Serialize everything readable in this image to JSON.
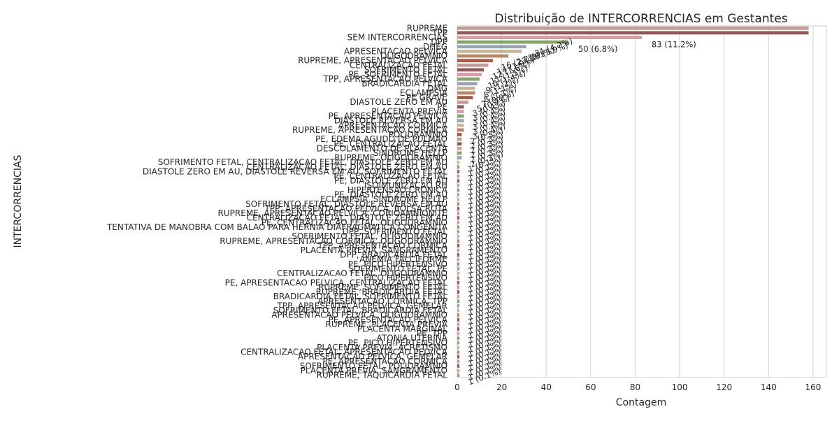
{
  "chart_data": {
    "type": "bar",
    "orientation": "horizontal",
    "title": "Distribuição de INTERCORRENCIAS em Gestantes",
    "xlabel": "Contagem",
    "ylabel": "INTERCORRENCIAS",
    "xlim": [
      0,
      166
    ],
    "xticks": [
      0,
      20,
      40,
      60,
      80,
      100,
      120,
      140,
      160
    ],
    "grid": "vertical",
    "legend": "none",
    "palette": [
      "#c49a9a",
      "#8c5a5a",
      "#d99aa4",
      "#85a36a",
      "#9aa3b0",
      "#c7b79a",
      "#b5886a",
      "#a85a4a"
    ],
    "bars": [
      {
        "label": "RUPREME",
        "value": 158,
        "text": ""
      },
      {
        "label": "TPP",
        "value": 158,
        "text": ""
      },
      {
        "label": "SEM INTERCORRENCIAS",
        "value": 83,
        "text": "83 (11.2%)"
      },
      {
        "label": "DPP",
        "value": 50,
        "text": "50 (6.8%)"
      },
      {
        "label": "DHEG",
        "value": 31,
        "text": "31 (4.2%)"
      },
      {
        "label": "APRESENTACAO PELVICA",
        "value": 29,
        "text": "29 (3.9%)"
      },
      {
        "label": "OLIGODRAMNIO",
        "value": 23,
        "text": "23 (3.1%)"
      },
      {
        "label": "RUPREME, APRESENTACAO PELVICA",
        "value": 16,
        "text": "16 (2.2%)"
      },
      {
        "label": "CENTRALIZACAO FETAL",
        "value": 14,
        "text": "14 (1.9%)"
      },
      {
        "label": "SOFRIMENTO FETAL",
        "value": 12,
        "text": "12 (1.6%)"
      },
      {
        "label": "PE, SOFRIMENTO FETAL",
        "value": 11,
        "text": "11 (1.5%)"
      },
      {
        "label": "TPP, APRESENTACAO PELVICA",
        "value": 10,
        "text": "10 (1.4%)"
      },
      {
        "label": "BRADICARDIA FETAL",
        "value": 9,
        "text": "9 (1.2%)"
      },
      {
        "label": "DMG",
        "value": 8,
        "text": "8 (1.1%)"
      },
      {
        "label": "ECLAMPSIA",
        "value": 8,
        "text": "8 (1.1%)"
      },
      {
        "label": "PE GRAVE",
        "value": 7,
        "text": "7 (0.9%)"
      },
      {
        "label": "DIASTOLE ZERO EM AU",
        "value": 5,
        "text": "5 (0.7%)"
      },
      {
        "label": "PE",
        "value": 3,
        "text": "3 (0.4%)"
      },
      {
        "label": "PLACENTA PREVIA",
        "value": 3,
        "text": "3 (0.4%)"
      },
      {
        "label": "PE, APRESENTACAO PELVICA",
        "value": 3,
        "text": "3 (0.4%)"
      },
      {
        "label": "DIASTOLE REVERSA EM AU",
        "value": 3,
        "text": "3 (0.4%)"
      },
      {
        "label": "APRESENTACAO CORMICA",
        "value": 3,
        "text": "3 (0.4%)"
      },
      {
        "label": "RUPREME, APRESENTACAO CORMICA",
        "value": 3,
        "text": "3 (0.4%)"
      },
      {
        "label": "POLIDRAMNIO",
        "value": 2,
        "text": "2 (0.3%)"
      },
      {
        "label": "PE, EDEMA AGUDO DE PULMAO",
        "value": 2,
        "text": "2 (0.3%)"
      },
      {
        "label": "PE, CENTRALIZACAO FETAL",
        "value": 2,
        "text": "2 (0.3%)"
      },
      {
        "label": "DESCOLAMENTO DE PLACENTA",
        "value": 2,
        "text": "2 (0.3%)"
      },
      {
        "label": "SINDROME HELLP",
        "value": 2,
        "text": "2 (0.3%)"
      },
      {
        "label": "RUPREME, OLIGODRAMNIO",
        "value": 2,
        "text": "2 (0.3%)"
      },
      {
        "label": "SOFRIMENTO FETAL, CENTRALIZACAO FETAL, DIASTOLE ZERO EM AU",
        "value": 1,
        "text": "1 (0.1%)"
      },
      {
        "label": "CENTRALIZACAO FETAL, DIASTOLE ZERO EM AU",
        "value": 1,
        "text": "1 (0.1%)"
      },
      {
        "label": "DIASTOLE ZERO EM AU, DIASTOLE REVERSA EM AU, SOFRIMENTO FETAL",
        "value": 1,
        "text": "1 (0.1%)"
      },
      {
        "label": "PE, CENTRALIZACAO FETAL",
        "value": 1,
        "text": "1 (0.1%)"
      },
      {
        "label": "PE, DIASTOLE ZERO EM AU",
        "value": 1,
        "text": "1 (0.1%)"
      },
      {
        "label": "ISOIMUNIZACAO RH",
        "value": 1,
        "text": "1 (0.1%)"
      },
      {
        "label": "HIPERTENSAO CRONICA",
        "value": 1,
        "text": "1 (0.1%)"
      },
      {
        "label": "PE, DIASTOLE ZERO EM AU",
        "value": 1,
        "text": "1 (0.1%)"
      },
      {
        "label": "ECLAMPSIA, SINDROME HELLP",
        "value": 1,
        "text": "1 (0.1%)"
      },
      {
        "label": "SOFRIMENTO FETAL, DIASTOLE REVERSA EM AU",
        "value": 1,
        "text": "1 (0.1%)"
      },
      {
        "label": "TPP, APRESENTACAO PELVICA, BOLSA ROTA",
        "value": 1,
        "text": "1 (0.1%)"
      },
      {
        "label": "RUPREME, APRESENTACAO PELVICA, CORIOAMNIONITE",
        "value": 1,
        "text": "1 (0.1%)"
      },
      {
        "label": "CENTRALIZACAO FETAL, DIASTOLE ZERO EM AU",
        "value": 1,
        "text": "1 (0.1%)"
      },
      {
        "label": "PE, CENTRALIZACAO FETAL, OLIGODRAMNIO",
        "value": 1,
        "text": "1 (0.1%)"
      },
      {
        "label": "TENTATIVA DE MANOBRA COM BALAO PARA HERNIA DIAFRAGMATICA CONGENITA",
        "value": 1,
        "text": "1 (0.1%)"
      },
      {
        "label": "DPP, SOFRIMENTO FETAL",
        "value": 1,
        "text": "1 (0.1%)"
      },
      {
        "label": "SOFRIMENTO FETAL, OLIGODRAMNIO",
        "value": 1,
        "text": "1 (0.1%)"
      },
      {
        "label": "RUPREME, APRESENTACAO CORMICA, OLIGODRAMNIO",
        "value": 1,
        "text": "1 (0.1%)"
      },
      {
        "label": "TPP, APRESENTACAO CORMICA",
        "value": 1,
        "text": "1 (0.1%)"
      },
      {
        "label": "PLACENTA PREVIA, SANGRAMENTO",
        "value": 1,
        "text": "1 (0.1%)"
      },
      {
        "label": "DPP, BRADICARDIA FETAL",
        "value": 1,
        "text": "1 (0.1%)"
      },
      {
        "label": "ANEMIA FALCIFORME",
        "value": 1,
        "text": "1 (0.1%)"
      },
      {
        "label": "PE, PICO HIPERTENSIVO",
        "value": 1,
        "text": "1 (0.1%)"
      },
      {
        "label": "SOFRIMENTO FETAL, PE",
        "value": 1,
        "text": "1 (0.1%)"
      },
      {
        "label": "CENTRALIZACAO FETAL, OLIGODRAMNIO",
        "value": 1,
        "text": "1 (0.1%)"
      },
      {
        "label": "PICO HIPERTENSIVO",
        "value": 1,
        "text": "1 (0.1%)"
      },
      {
        "label": "PE, APRESENTACAO PELVICA, CENTRALIZACAO FETAL",
        "value": 1,
        "text": "1 (0.1%)"
      },
      {
        "label": "RUPREME, SOFRIMENTO FETAL",
        "value": 1,
        "text": "1 (0.1%)"
      },
      {
        "label": "RUPREME, BRADICARDIA FETAL",
        "value": 1,
        "text": "1 (0.1%)"
      },
      {
        "label": "BRADICARDIA FETAL, SOFRIMENTO FETAL",
        "value": 1,
        "text": "1 (0.1%)"
      },
      {
        "label": "APRESENTACAO CORMICA, TPP",
        "value": 1,
        "text": "1 (0.1%)"
      },
      {
        "label": "TPP, APRESENTACAO PELVICA, GEMELAR",
        "value": 1,
        "text": "1 (0.1%)"
      },
      {
        "label": "SOFRIMENTO FETAL, BRADICARDIA FETAL",
        "value": 1,
        "text": "1 (0.1%)"
      },
      {
        "label": "APRESENTACAO PELVICA, OLIGODRAMNIO",
        "value": 1,
        "text": "1 (0.1%)"
      },
      {
        "label": "PE, APRESENTACAO PELVICA",
        "value": 1,
        "text": "1 (0.1%)"
      },
      {
        "label": "RUPREME, PLACENTA PREVIA",
        "value": 1,
        "text": "1 (0.1%)"
      },
      {
        "label": "PLACENTA MARGINAL",
        "value": 1,
        "text": "1 (0.1%)"
      },
      {
        "label": "PE, TPP",
        "value": 1,
        "text": "1 (0.1%)"
      },
      {
        "label": "ATONIA UTERINA",
        "value": 1,
        "text": "1 (0.1%)"
      },
      {
        "label": "PE, PICO HIPERTENSIVO",
        "value": 1,
        "text": "1 (0.1%)"
      },
      {
        "label": "PLACENTA PREVIA, ACRETISMO",
        "value": 1,
        "text": "1 (0.1%)"
      },
      {
        "label": "CENTRALIZACAO FETAL, APRESENTACAO PELVICA",
        "value": 1,
        "text": "1 (0.1%)"
      },
      {
        "label": "APRESENTACAO PELVICA, GEMELAR",
        "value": 1,
        "text": "1 (0.1%)"
      },
      {
        "label": "PE, APRESENTACAO CORMICA",
        "value": 1,
        "text": "1 (0.1%)"
      },
      {
        "label": "SOFRIMENTO FETAL, POLIDRAMNIO",
        "value": 1,
        "text": "1 (0.1%)"
      },
      {
        "label": "PLACENTA PREVIA, SANGRAMENTO",
        "value": 1,
        "text": "1 (0.1%)"
      },
      {
        "label": "RUPREME, TAQUICARDIA FETAL",
        "value": 1,
        "text": "1 (0.1%)"
      }
    ]
  }
}
